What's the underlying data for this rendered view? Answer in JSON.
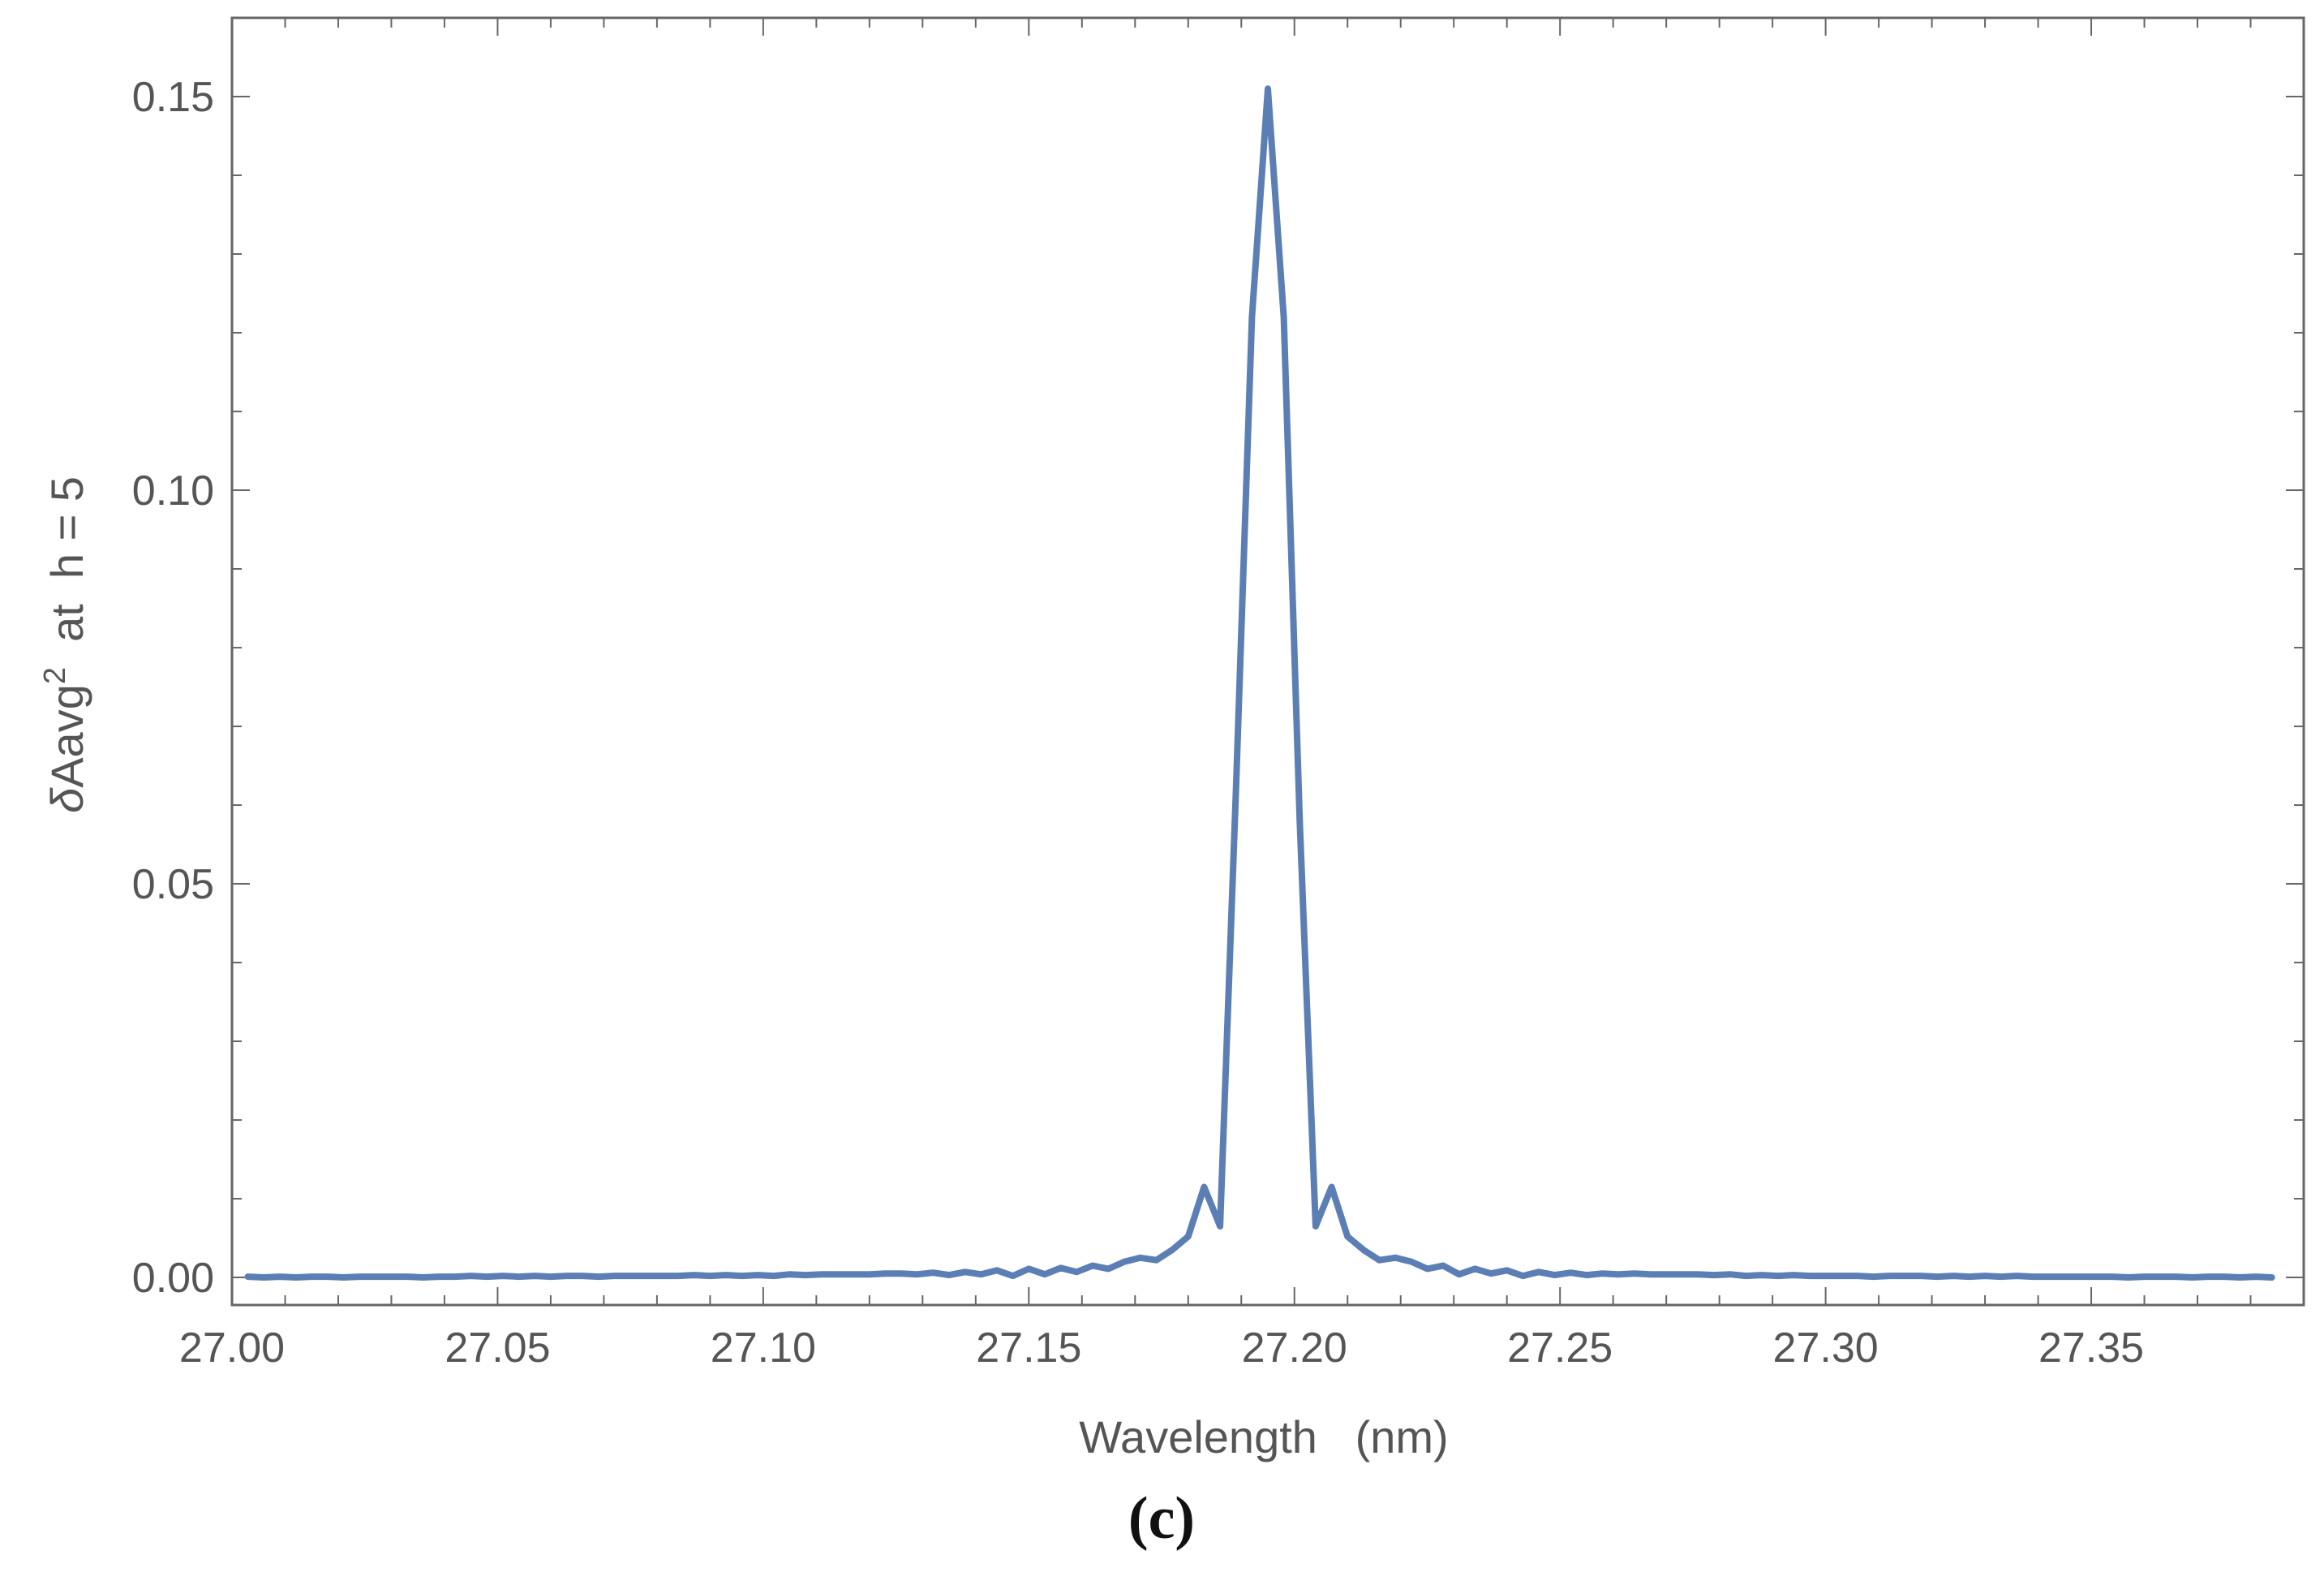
{
  "figure": {
    "panel_label": "(c)"
  },
  "chart_data": {
    "type": "line",
    "xlabel": "Wavelength   (nm)",
    "ylabel": {
      "prefix": "δ",
      "main": "Aavg",
      "superscript": "2",
      "suffix": "  at  h = 5"
    },
    "xlim": [
      27.0,
      27.39
    ],
    "ylim": [
      -0.0035,
      0.16
    ],
    "xticks": {
      "values": [
        27.0,
        27.05,
        27.1,
        27.15,
        27.2,
        27.25,
        27.3,
        27.35
      ],
      "labels": [
        "27.00",
        "27.05",
        "27.10",
        "27.15",
        "27.20",
        "27.25",
        "27.30",
        "27.35"
      ]
    },
    "yticks": {
      "values": [
        0.0,
        0.05,
        0.1,
        0.15
      ],
      "labels": [
        "0.00",
        "0.05",
        "0.10",
        "0.15"
      ]
    },
    "grid": false,
    "frame": true,
    "series": [
      {
        "color": "#5b7fb4",
        "x": [
          27.003,
          27.006,
          27.009,
          27.012,
          27.015,
          27.018,
          27.021,
          27.024,
          27.027,
          27.03,
          27.033,
          27.036,
          27.039,
          27.042,
          27.045,
          27.048,
          27.051,
          27.054,
          27.057,
          27.06,
          27.063,
          27.066,
          27.069,
          27.072,
          27.075,
          27.078,
          27.081,
          27.084,
          27.087,
          27.09,
          27.093,
          27.096,
          27.099,
          27.102,
          27.105,
          27.108,
          27.111,
          27.114,
          27.117,
          27.12,
          27.123,
          27.126,
          27.129,
          27.132,
          27.135,
          27.138,
          27.141,
          27.144,
          27.147,
          27.15,
          27.153,
          27.156,
          27.159,
          27.162,
          27.165,
          27.168,
          27.171,
          27.174,
          27.177,
          27.18,
          27.183,
          27.186,
          27.189,
          27.192,
          27.195,
          27.198,
          27.201,
          27.204,
          27.207,
          27.21,
          27.213,
          27.216,
          27.219,
          27.222,
          27.225,
          27.228,
          27.231,
          27.234,
          27.237,
          27.24,
          27.243,
          27.246,
          27.249,
          27.252,
          27.255,
          27.258,
          27.261,
          27.264,
          27.267,
          27.27,
          27.273,
          27.276,
          27.279,
          27.282,
          27.285,
          27.288,
          27.291,
          27.294,
          27.297,
          27.3,
          27.303,
          27.306,
          27.309,
          27.312,
          27.315,
          27.318,
          27.321,
          27.324,
          27.327,
          27.33,
          27.333,
          27.336,
          27.339,
          27.342,
          27.345,
          27.348,
          27.351,
          27.354,
          27.357,
          27.36,
          27.363,
          27.366,
          27.369,
          27.372,
          27.375,
          27.378,
          27.381,
          27.384
        ],
        "y": [
          0.0001,
          0.0,
          0.0001,
          0.0,
          0.0001,
          0.0001,
          0.0,
          0.0001,
          0.0001,
          0.0001,
          0.0001,
          0.0,
          0.0001,
          0.0001,
          0.0002,
          0.0001,
          0.0002,
          0.0001,
          0.0002,
          0.0001,
          0.0002,
          0.0002,
          0.0001,
          0.0002,
          0.0002,
          0.0002,
          0.0002,
          0.0002,
          0.0003,
          0.0002,
          0.0003,
          0.0002,
          0.0003,
          0.0002,
          0.0004,
          0.0003,
          0.0004,
          0.0004,
          0.0004,
          0.0004,
          0.0005,
          0.0005,
          0.0004,
          0.0006,
          0.0003,
          0.0007,
          0.0004,
          0.0009,
          0.0002,
          0.0011,
          0.0004,
          0.0012,
          0.0007,
          0.0015,
          0.0011,
          0.002,
          0.0025,
          0.0022,
          0.0035,
          0.0052,
          0.0115,
          0.0065,
          0.062,
          0.122,
          0.151,
          0.122,
          0.058,
          0.0065,
          0.0115,
          0.0052,
          0.0035,
          0.0022,
          0.0025,
          0.002,
          0.0011,
          0.0015,
          0.0004,
          0.0011,
          0.0005,
          0.0009,
          0.0002,
          0.0007,
          0.0003,
          0.0006,
          0.0003,
          0.0005,
          0.0004,
          0.0005,
          0.0004,
          0.0004,
          0.0004,
          0.0004,
          0.0003,
          0.0004,
          0.0002,
          0.0003,
          0.0002,
          0.0003,
          0.0002,
          0.0002,
          0.0002,
          0.0002,
          0.0001,
          0.0002,
          0.0002,
          0.0002,
          0.0001,
          0.0002,
          0.0001,
          0.0002,
          0.0001,
          0.0002,
          0.0001,
          0.0001,
          0.0001,
          0.0001,
          0.0001,
          0.0001,
          0.0,
          0.0001,
          0.0001,
          0.0001,
          0.0,
          0.0001,
          0.0001,
          0.0,
          0.0001,
          0.0
        ]
      }
    ]
  }
}
